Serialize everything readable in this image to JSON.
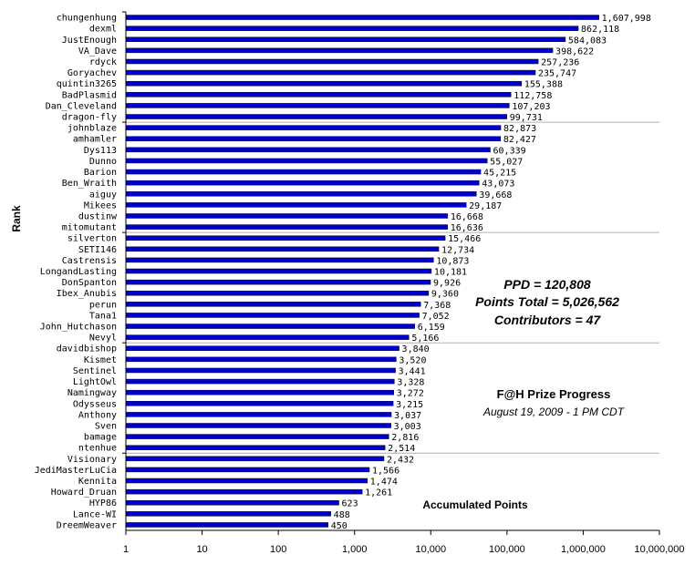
{
  "chart_data": {
    "type": "bar",
    "orientation": "horizontal",
    "scale": "log",
    "ylabel": "Rank",
    "xlabel": "",
    "xlim": [
      1,
      10000000
    ],
    "x_ticks": [
      "1",
      "10",
      "100",
      "1,000",
      "10,000",
      "100,000",
      "1,000,000",
      "10,000,000"
    ],
    "bar_color": "#0000cc",
    "categories": [
      "chungenhung",
      "dexml",
      "JustEnough",
      "VA_Dave",
      "rdyck",
      "Goryachev",
      "quintin3265",
      "BadPlasmid",
      "Dan_Cleveland",
      "dragon-fly",
      "johnblaze",
      "amhamler",
      "Dys113",
      "Dunno",
      "Barion",
      "Ben_Wraith",
      "aiguy",
      "Mikees",
      "dustinw",
      "mitomutant",
      "silverton",
      "SETI146",
      "Castrensis",
      "LongandLasting",
      "DonSpanton",
      "Ibex_Anubis",
      "perun",
      "Tana1",
      "John_Hutchason",
      "Nevyl",
      "davidbishop",
      "Kismet",
      "Sentinel",
      "LightOwl",
      "Namingway",
      "Odysseus",
      "Anthony",
      "Sven",
      "bamage",
      "ntenhue",
      "Visionary",
      "JediMasterLuCia",
      "Kennita",
      "Howard_Druan",
      "HYP86",
      "Lance-WI",
      "DreemWeaver"
    ],
    "values": [
      1607998,
      862118,
      584083,
      398622,
      257236,
      235747,
      155388,
      112758,
      107203,
      99731,
      82873,
      82427,
      60339,
      55027,
      45215,
      43073,
      39668,
      29187,
      16668,
      16636,
      15466,
      12734,
      10873,
      10181,
      9926,
      9360,
      7368,
      7052,
      6159,
      5166,
      3840,
      3520,
      3441,
      3328,
      3272,
      3215,
      3037,
      3003,
      2816,
      2514,
      2432,
      1566,
      1474,
      1261,
      623,
      488,
      450
    ],
    "value_labels": [
      "1,607,998",
      "862,118",
      "584,083",
      "398,622",
      "257,236",
      "235,747",
      "155,388",
      "112,758",
      "107,203",
      "99,731",
      "82,873",
      "82,427",
      "60,339",
      "55,027",
      "45,215",
      "43,073",
      "39,668",
      "29,187",
      "16,668",
      "16,636",
      "15,466",
      "12,734",
      "10,873",
      "10,181",
      "9,926",
      "9,360",
      "7,368",
      "7,052",
      "6,159",
      "5,166",
      "3,840",
      "3,520",
      "3,441",
      "3,328",
      "3,272",
      "3,215",
      "3,037",
      "3,003",
      "2,816",
      "2,514",
      "2,432",
      "1,566",
      "1,474",
      "1,261",
      "623",
      "488",
      "450"
    ],
    "annotations": {
      "stats": [
        "PPD = 120,808",
        "Points Total = 5,026,562",
        "Contributors = 47"
      ],
      "prize_title": "F@H Prize Progress",
      "prize_date": "August 19, 2009 - 1 PM CDT",
      "accumulated": "Accumulated Points"
    },
    "grid": false,
    "legend": "none"
  }
}
